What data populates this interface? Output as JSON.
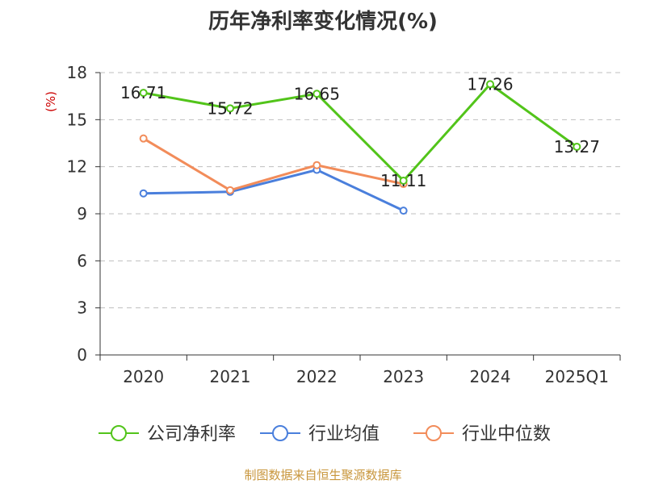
{
  "title": "历年净利率变化情况(%)",
  "source": "制图数据来自恒生聚源数据库",
  "chart_data": {
    "type": "line",
    "title": "历年净利率变化情况(%)",
    "ylabel": "(%)",
    "ylim": [
      0,
      18
    ],
    "yticks": [
      0,
      3,
      6,
      9,
      12,
      15,
      18
    ],
    "grid": true,
    "legend_position": "bottom",
    "categories": [
      "2020",
      "2021",
      "2022",
      "2023",
      "2024",
      "2025Q1"
    ],
    "series": [
      {
        "name": "公司净利率",
        "color": "#52c41a",
        "values": [
          16.71,
          15.72,
          16.65,
          11.11,
          17.26,
          13.27
        ],
        "labels": [
          "16.71",
          "15.72",
          "16.65",
          "11.11",
          "17.26",
          "13.27"
        ]
      },
      {
        "name": "行业均值",
        "color": "#4a7fdc",
        "values": [
          10.3,
          10.4,
          11.8,
          9.2,
          null,
          null
        ]
      },
      {
        "name": "行业中位数",
        "color": "#f28c5a",
        "values": [
          13.8,
          10.5,
          12.1,
          10.9,
          null,
          null
        ]
      }
    ]
  }
}
